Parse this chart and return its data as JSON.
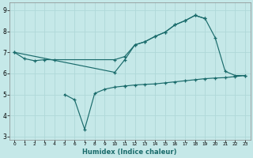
{
  "xlabel": "Humidex (Indice chaleur)",
  "background_color": "#c5e8e8",
  "line_color": "#1a6b6b",
  "grid_color": "#afd8d8",
  "xlim": [
    -0.5,
    23.5
  ],
  "ylim": [
    2.85,
    9.35
  ],
  "yticks": [
    3,
    4,
    5,
    6,
    7,
    8,
    9
  ],
  "xticks": [
    0,
    1,
    2,
    3,
    4,
    5,
    6,
    7,
    8,
    9,
    10,
    11,
    12,
    13,
    14,
    15,
    16,
    17,
    18,
    19,
    20,
    21,
    22,
    23
  ],
  "series": [
    {
      "x": [
        0,
        1,
        2,
        3,
        4,
        10,
        11,
        12,
        13,
        14,
        15,
        16,
        17,
        18,
        19
      ],
      "y": [
        7.0,
        6.7,
        6.6,
        6.65,
        6.65,
        6.65,
        6.8,
        7.35,
        7.5,
        7.75,
        7.95,
        8.3,
        8.5,
        8.75,
        8.6
      ]
    },
    {
      "x": [
        0,
        10,
        11,
        12,
        13,
        14,
        15,
        16,
        17,
        18,
        19,
        20,
        21,
        22,
        23
      ],
      "y": [
        7.0,
        6.05,
        6.65,
        7.35,
        7.5,
        7.75,
        7.95,
        8.3,
        8.5,
        8.75,
        8.6,
        7.7,
        6.1,
        5.9,
        5.9
      ]
    },
    {
      "x": [
        5,
        6,
        7,
        8,
        9,
        10,
        11
      ],
      "y": [
        5.0,
        4.75,
        3.35,
        5.05,
        5.25,
        5.35,
        5.4
      ]
    },
    {
      "x": [
        11,
        12,
        13,
        14,
        15,
        16,
        17,
        18,
        19,
        20,
        21,
        22,
        23
      ],
      "y": [
        5.4,
        5.45,
        5.48,
        5.5,
        5.55,
        5.6,
        5.65,
        5.7,
        5.75,
        5.78,
        5.8,
        5.85,
        5.9
      ]
    }
  ]
}
